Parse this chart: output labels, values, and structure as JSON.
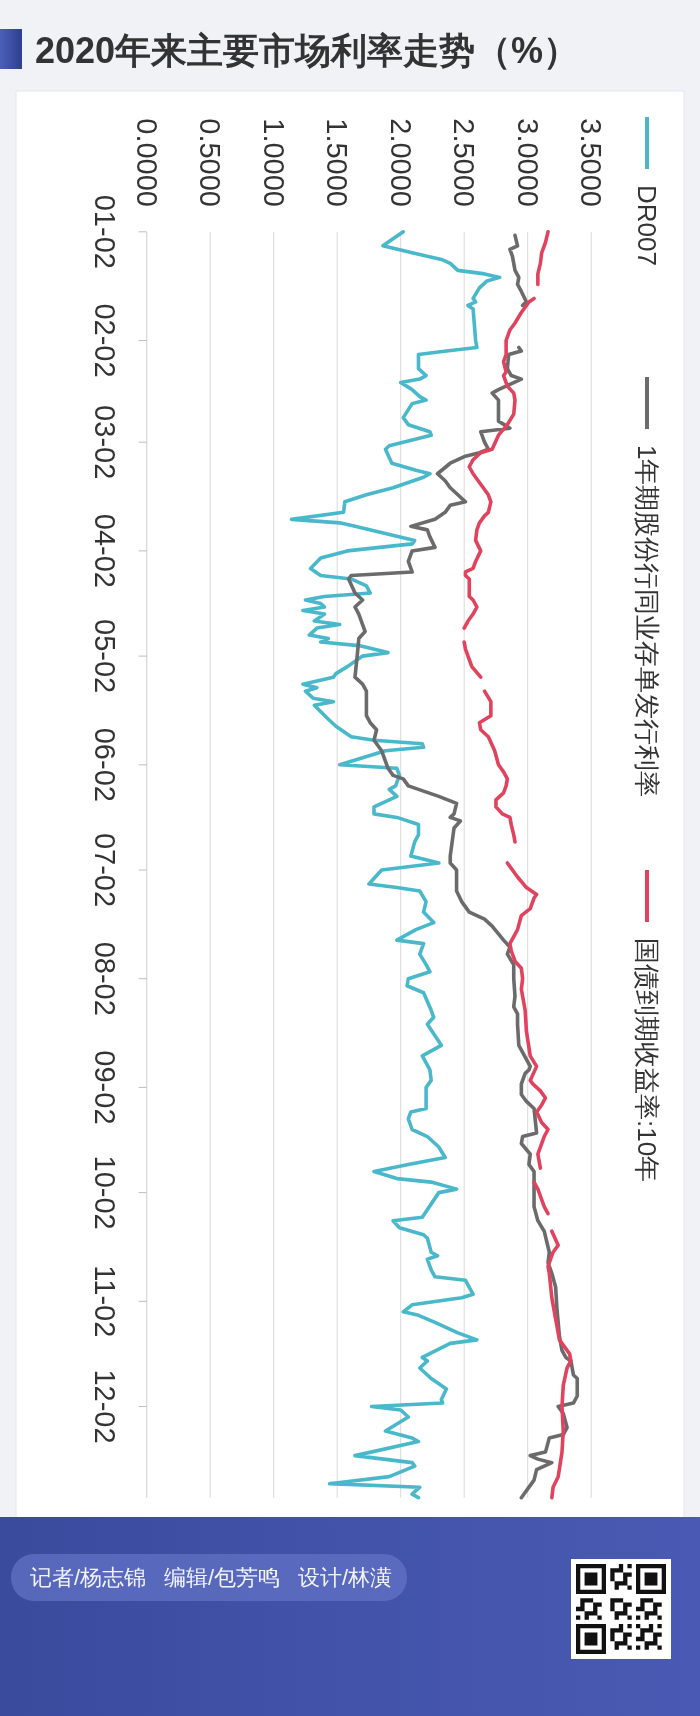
{
  "chart_data": {
    "type": "line",
    "title": "2020年来主要市场利率走势（%）",
    "orientation": "horizontal",
    "ylim": [
      "--12-28",
      "--01-02"
    ],
    "yticks": [
      {
        "value": "--01-02",
        "label": "01-02"
      },
      {
        "value": "--02-02",
        "label": "02-02"
      },
      {
        "value": "--03-02",
        "label": "03-02"
      },
      {
        "value": "--04-02",
        "label": "04-02"
      },
      {
        "value": "--05-02",
        "label": "05-02"
      },
      {
        "value": "--06-02",
        "label": "06-02"
      },
      {
        "value": "--07-02",
        "label": "07-02"
      },
      {
        "value": "--08-02",
        "label": "08-02"
      },
      {
        "value": "--09-02",
        "label": "09-02"
      },
      {
        "value": "--10-02",
        "label": "10-02"
      },
      {
        "value": "--11-02",
        "label": "11-02"
      },
      {
        "value": "--12-02",
        "label": "12-02"
      }
    ],
    "xlim": [
      0,
      3.5
    ],
    "xticks": [
      {
        "value": 0,
        "label": "0.0000"
      },
      {
        "value": 0.5,
        "label": "0.5000"
      },
      {
        "value": 1,
        "label": "1.0000"
      },
      {
        "value": 1.5,
        "label": "1.5000"
      },
      {
        "value": 2,
        "label": "2.0000"
      },
      {
        "value": 2.5,
        "label": "2.5000"
      },
      {
        "value": 3,
        "label": "3.0000"
      },
      {
        "value": 3.5,
        "label": "3.5000"
      }
    ],
    "grid": "x",
    "legend": "right",
    "annotations": [
      "记者/杨志锦",
      "编辑/包芳鸣",
      "设计/林潢"
    ],
    "series": [
      {
        "name": "DR007",
        "color": "#4ab8cb",
        "x": [
          "--01-02",
          "--01-06",
          "--01-08",
          "--01-10",
          "--01-11",
          "--01-13",
          "--01-14",
          "--01-15",
          "--01-16",
          "--01-18",
          "--01-21",
          "--01-22",
          "--01-23",
          "--01-24",
          "--02-02",
          "--02-04",
          "--02-05",
          "--02-06",
          "--02-10",
          "--02-12",
          "--02-13",
          "--02-14",
          "--02-16",
          "--02-18",
          "--02-19",
          "--02-20",
          "--02-24",
          "--02-26",
          "--02-28",
          "--02-29",
          "--03-03",
          "--03-04",
          "--03-08",
          "--03-10",
          "--03-11",
          "--03-12",
          "--03-15",
          "--03-17",
          "--03-19",
          "--03-22",
          "--03-24",
          "--03-25",
          "--03-26",
          "--03-30",
          "--03-31",
          "--04-02",
          "--04-04",
          "--04-07",
          "--04-09",
          "--04-10",
          "--04-12",
          "--04-14",
          "--04-15",
          "--04-16",
          "--04-17",
          "--04-18",
          "--04-19",
          "--04-20",
          "--04-22",
          "--04-23",
          "--04-24",
          "--04-26",
          "--04-27",
          "--04-28",
          "--04-29",
          "--05-01",
          "--05-02",
          "--05-05",
          "--05-07",
          "--05-08",
          "--05-10",
          "--05-11",
          "--05-12",
          "--05-14",
          "--05-15",
          "--05-16",
          "--05-20",
          "--05-22",
          "--05-25",
          "--05-26",
          "--05-27",
          "--05-28",
          "--05-29",
          "--06-02",
          "--06-03",
          "--06-05",
          "--06-08",
          "--06-09",
          "--06-11",
          "--06-14",
          "--06-16",
          "--06-17",
          "--06-19",
          "--06-22",
          "--06-24",
          "--06-28",
          "--06-30",
          "--07-02",
          "--07-06",
          "--07-07",
          "--07-08",
          "--07-11",
          "--07-14",
          "--07-17",
          "--07-19",
          "--07-22",
          "--07-23",
          "--07-26",
          "--07-29",
          "--07-31",
          "--08-02",
          "--08-04",
          "--08-06",
          "--08-11",
          "--08-13",
          "--08-15",
          "--08-21",
          "--08-24",
          "--08-28",
          "--08-31",
          "--09-02",
          "--09-08",
          "--09-09",
          "--09-11",
          "--09-14",
          "--09-16",
          "--09-19",
          "--09-22",
          "--09-24",
          "--09-26",
          "--09-28",
          "--09-29",
          "--10-01",
          "--10-02",
          "--10-09",
          "--10-10",
          "--10-12",
          "--10-14",
          "--10-15",
          "--10-19",
          "--10-20",
          "--10-21",
          "--10-24",
          "--10-26",
          "--10-27",
          "--10-29",
          "--10-31",
          "--11-01",
          "--11-03",
          "--11-05",
          "--11-06",
          "--11-08",
          "--11-11",
          "--11-13",
          "--11-14",
          "--11-18",
          "--11-19",
          "--11-21",
          "--11-24",
          "--11-27",
          "--11-30",
          "--12-01",
          "--12-02",
          "--12-03",
          "--12-05",
          "--12-09",
          "--12-11",
          "--12-12",
          "--12-16",
          "--12-18",
          "--12-19",
          "--12-22",
          "--12-24",
          "--12-25",
          "--12-27",
          "--12-28"
        ],
        "values": [
          2.02,
          1.86,
          2.09,
          2.33,
          2.39,
          2.45,
          2.66,
          2.78,
          2.68,
          2.62,
          2.57,
          2.59,
          2.53,
          2.57,
          2.59,
          2.6,
          2.36,
          2.14,
          2.14,
          2.2,
          2.15,
          2.0,
          2.09,
          2.15,
          2.2,
          2.09,
          2.02,
          2.06,
          2.23,
          2.24,
          1.91,
          1.88,
          1.93,
          2.12,
          2.23,
          2.18,
          1.94,
          1.73,
          1.56,
          1.55,
          1.14,
          1.52,
          1.64,
          2.11,
          2.09,
          1.58,
          1.37,
          1.29,
          1.37,
          1.61,
          1.73,
          1.76,
          1.4,
          1.25,
          1.37,
          1.4,
          1.23,
          1.4,
          1.32,
          1.52,
          1.34,
          1.28,
          1.43,
          1.37,
          1.67,
          1.9,
          1.7,
          1.58,
          1.49,
          1.47,
          1.23,
          1.34,
          1.25,
          1.31,
          1.47,
          1.32,
          1.43,
          1.49,
          1.61,
          1.79,
          2.17,
          2.18,
          1.88,
          1.52,
          1.97,
          1.99,
          1.96,
          1.91,
          1.97,
          1.79,
          1.79,
          1.97,
          2.14,
          2.14,
          2.11,
          2.08,
          2.3,
          1.85,
          1.75,
          1.97,
          2.15,
          2.2,
          2.18,
          2.26,
          2.12,
          1.97,
          2.18,
          2.15,
          2.2,
          2.23,
          2.06,
          2.05,
          2.18,
          2.24,
          2.26,
          2.21,
          2.32,
          2.17,
          2.23,
          2.24,
          2.2,
          2.2,
          2.08,
          2.06,
          2.09,
          2.21,
          2.3,
          2.35,
          2.06,
          1.79,
          1.97,
          2.24,
          2.44,
          2.3,
          2.17,
          1.94,
          1.99,
          2.18,
          2.21,
          2.24,
          2.29,
          2.21,
          2.24,
          2.27,
          2.51,
          2.54,
          2.57,
          2.48,
          2.09,
          2.02,
          2.14,
          2.27,
          2.45,
          2.6,
          2.39,
          2.17,
          2.21,
          2.15,
          2.24,
          2.36,
          2.32,
          2.33,
          1.77,
          2.0,
          2.06,
          1.88,
          2.09,
          2.14,
          1.64,
          2.09,
          2.11,
          1.91,
          1.44,
          2.15,
          2.09,
          2.14
        ]
      },
      {
        "name": "1年期股份行同业存单发行利率",
        "color": "#6b6b6b",
        "x": [
          "--01-03",
          "--01-06",
          "--01-07",
          "--01-09",
          "--01-11",
          "--01-13",
          "--01-15",
          "--01-17",
          "--01-19",
          "--01-22",
          "--01-23",
          "--01-29",
          "--02-04",
          "--02-05",
          "--02-06",
          "--02-10",
          "--02-12",
          "--02-13",
          "--02-14",
          "--02-16",
          "--02-17",
          "--02-19",
          "--02-25",
          "--02-27",
          "--02-28",
          "--03-02",
          "--03-04",
          "--03-05",
          "--03-06",
          "--03-08",
          "--03-11",
          "--03-13",
          "--03-15",
          "--03-17",
          "--03-19",
          "--03-20",
          "--03-22",
          "--03-24",
          "--03-26",
          "--03-27",
          "--03-29",
          "--04-01",
          "--04-02",
          "--04-05",
          "--04-08",
          "--04-09",
          "--04-10",
          "--04-14",
          "--04-16",
          "--04-18",
          "--04-20",
          "--04-25",
          "--04-27",
          "--05-01",
          "--05-08",
          "--05-10",
          "--05-12",
          "--05-19",
          "--05-21",
          "--05-23",
          "--05-26",
          "--05-29",
          "--06-03",
          "--06-05",
          "--06-06",
          "--06-08",
          "--06-11",
          "--06-13",
          "--06-16",
          "--06-17",
          "--06-18",
          "--06-20",
          "--06-28",
          "--06-30",
          "--07-02",
          "--07-08",
          "--07-11",
          "--07-14",
          "--07-16",
          "--07-18",
          "--07-22",
          "--07-24",
          "--07-26",
          "--07-29",
          "--08-02",
          "--08-07",
          "--08-10",
          "--08-12",
          "--08-15",
          "--08-21",
          "--08-25",
          "--08-27",
          "--08-28",
          "--08-29",
          "--09-01",
          "--09-04",
          "--09-06",
          "--09-08",
          "--09-15",
          "--09-16",
          "--09-18",
          "--09-21",
          "--09-24",
          "--09-26",
          "--09-29",
          "--10-06",
          "--10-10",
          "--10-13",
          "--10-19",
          "--10-22",
          "--10-25",
          "--10-29",
          "--11-04",
          "--11-12",
          "--11-16",
          "--11-18",
          "--11-19",
          "--11-23",
          "--11-24",
          "--11-29",
          "--12-01",
          "--12-02",
          "--12-04",
          "--12-08",
          "--12-10",
          "--12-11",
          "--12-15",
          "--12-16",
          "--12-17",
          "--12-18",
          "--12-20",
          "--12-23",
          "--12-25",
          "--12-28"
        ],
        "values": [
          2.9,
          2.92,
          2.86,
          2.88,
          2.89,
          2.9,
          2.93,
          2.92,
          2.95,
          2.99,
          2.96,
          null,
          2.93,
          2.95,
          2.85,
          2.84,
          2.87,
          2.95,
          2.89,
          2.77,
          2.72,
          2.77,
          2.77,
          2.86,
          2.63,
          2.66,
          2.69,
          2.62,
          2.51,
          2.39,
          2.29,
          2.35,
          2.39,
          2.45,
          2.51,
          2.39,
          2.35,
          2.27,
          2.08,
          2.21,
          2.23,
          2.27,
          2.09,
          2.06,
          2.09,
          1.61,
          1.59,
          1.64,
          1.7,
          1.64,
          1.67,
          1.72,
          1.67,
          1.66,
          1.64,
          1.7,
          1.73,
          1.73,
          1.76,
          1.81,
          1.79,
          1.85,
          1.9,
          1.94,
          2.02,
          2.06,
          2.3,
          2.44,
          2.42,
          2.39,
          2.47,
          2.42,
          2.39,
          2.39,
          2.44,
          2.44,
          2.48,
          2.54,
          2.66,
          2.72,
          2.81,
          2.86,
          2.84,
          2.89,
          2.89,
          2.9,
          2.89,
          2.92,
          2.92,
          2.93,
          2.99,
          3.02,
          3.01,
          2.98,
          2.95,
          2.95,
          2.99,
          3.05,
          3.07,
          2.96,
          2.95,
          3.02,
          3.01,
          3.05,
          3.05,
          3.05,
          3.08,
          3.13,
          3.17,
          3.16,
          3.19,
          3.22,
          3.23,
          3.25,
          3.27,
          3.3,
          3.34,
          3.36,
          3.39,
          3.39,
          3.36,
          3.24,
          3.28,
          3.31,
          3.28,
          3.17,
          3.14,
          3.02,
          3.08,
          3.19,
          3.07,
          3.05,
          3.01,
          2.95
        ]
      },
      {
        "name": "国债到期收益率:10年",
        "color": "#e1435f",
        "x": [
          "--01-02",
          "--01-05",
          "--01-08",
          "--01-11",
          "--01-14",
          "--01-17",
          "--01-19",
          "--01-21",
          "--01-22",
          "--01-25",
          "--01-28",
          "--01-30",
          "--02-02",
          "--02-06",
          "--02-08",
          "--02-11",
          "--02-12",
          "--02-15",
          "--02-17",
          "--02-19",
          "--02-23",
          "--02-26",
          "--02-29",
          "--03-04",
          "--03-05",
          "--03-07",
          "--03-09",
          "--03-11",
          "--03-14",
          "--03-17",
          "--03-19",
          "--03-22",
          "--03-23",
          "--03-25",
          "--03-27",
          "--03-30",
          "--04-02",
          "--04-05",
          "--04-07",
          "--04-08",
          "--04-09",
          "--04-10",
          "--04-15",
          "--04-16",
          "--04-18",
          "--04-20",
          "--04-22",
          "--04-24",
          "--04-26",
          "--04-28",
          "--04-30",
          "--05-02",
          "--05-05",
          "--05-08",
          "--05-10",
          "--05-12",
          "--05-15",
          "--05-19",
          "--05-21",
          "--05-23",
          "--05-25",
          "--05-29",
          "--06-02",
          "--06-04",
          "--06-06",
          "--06-08",
          "--06-10",
          "--06-12",
          "--06-14",
          "--06-16",
          "--06-17",
          "--06-19",
          "--06-22",
          "--06-24",
          "--06-27",
          "--06-30",
          "--07-01",
          "--07-04",
          "--07-07",
          "--07-09",
          "--07-10",
          "--07-13",
          "--07-15",
          "--07-19",
          "--07-21",
          "--07-23",
          "--07-25",
          "--07-28",
          "--07-30",
          "--08-02",
          "--08-05",
          "--08-11",
          "--08-17",
          "--08-24",
          "--08-27",
          "--08-31",
          "--09-01",
          "--09-03",
          "--09-05",
          "--09-07",
          "--09-09",
          "--09-12",
          "--09-14",
          "--09-16",
          "--09-18",
          "--09-21",
          "--09-25",
          "--09-27",
          "--09-29",
          "--10-01",
          "--10-06",
          "--10-08",
          "--10-10",
          "--10-13",
          "--10-17",
          "--10-19",
          "--10-23",
          "--10-25",
          "--11-01",
          "--11-07",
          "--11-13",
          "--11-17",
          "--11-19",
          "--11-21",
          "--11-26",
          "--12-02",
          "--12-09",
          "--12-15",
          "--12-22",
          "--12-25",
          "--12-28"
        ],
        "values": [
          3.16,
          3.14,
          3.11,
          3.1,
          3.08,
          3.08,
          null,
          3.05,
          3.01,
          2.95,
          2.9,
          2.86,
          2.83,
          2.83,
          2.81,
          2.83,
          2.81,
          2.84,
          2.89,
          2.9,
          2.89,
          2.84,
          2.77,
          2.72,
          2.63,
          2.57,
          2.54,
          2.57,
          2.63,
          2.69,
          2.71,
          2.69,
          2.66,
          2.62,
          2.6,
          2.59,
          2.63,
          2.59,
          2.57,
          2.51,
          2.51,
          2.54,
          2.54,
          2.57,
          2.6,
          2.57,
          2.53,
          2.5,
          null,
          2.5,
          2.51,
          2.53,
          2.56,
          2.63,
          null,
          2.66,
          2.71,
          2.71,
          2.62,
          2.63,
          2.69,
          2.74,
          2.77,
          2.81,
          2.84,
          2.83,
          2.81,
          2.75,
          2.75,
          2.8,
          2.86,
          2.87,
          2.89,
          2.9,
          null,
          2.84,
          2.86,
          2.92,
          2.99,
          3.07,
          3.05,
          3.02,
          2.95,
          2.92,
          2.89,
          2.86,
          2.87,
          2.9,
          2.95,
          2.96,
          2.95,
          2.98,
          2.99,
          3.02,
          3.07,
          3.02,
          3.04,
          3.1,
          3.14,
          3.11,
          3.07,
          3.11,
          3.16,
          3.13,
          3.11,
          3.08,
          3.1,
          null,
          3.05,
          3.08,
          3.13,
          3.16,
          null,
          3.19,
          3.24,
          3.2,
          3.16,
          3.17,
          3.19,
          3.22,
          3.25,
          3.33,
          3.34,
          3.31,
          3.28,
          3.27,
          3.28,
          3.27,
          3.24,
          3.2,
          3.19
        ]
      }
    ]
  }
}
